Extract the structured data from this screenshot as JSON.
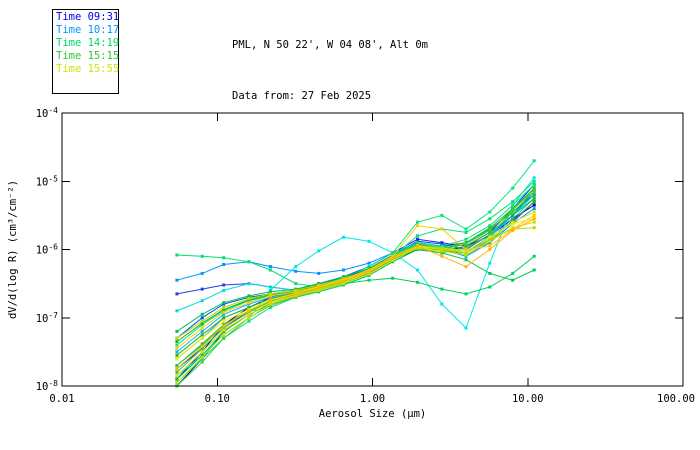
{
  "titles": {
    "line1": "PML, N 50 22', W 04 08', Alt 0m",
    "line2": "Data from: 27 Feb 2025"
  },
  "legend": {
    "items": [
      {
        "label": "Time 09:31",
        "color": "#0000e6"
      },
      {
        "label": "Time 10:17",
        "color": "#0096ff"
      },
      {
        "label": "Time 14:19",
        "color": "#00dc64"
      },
      {
        "label": "Time 15:15",
        "color": "#2dc832"
      },
      {
        "label": "Time 15:55",
        "color": "#d2e600"
      }
    ]
  },
  "chart_data": {
    "type": "line",
    "x_scale": "log",
    "y_scale": "log",
    "xlabel": "Aerosol Size (μm)",
    "ylabel": "dV/d(log R) (cm³/cm⁻²)",
    "xlim": [
      0.01,
      100
    ],
    "ylim": [
      1e-08,
      0.0001
    ],
    "grid": false,
    "legend_position": "top-left-outside",
    "x_ticks": [
      {
        "value": 0.01,
        "label": "0.01"
      },
      {
        "value": 0.1,
        "label": "0.10"
      },
      {
        "value": 1.0,
        "label": "1.00"
      },
      {
        "value": 10.0,
        "label": "10.00"
      },
      {
        "value": 100.0,
        "label": "100.00"
      }
    ],
    "y_ticks": [
      {
        "base": "10",
        "sup": "-4",
        "exp": -4
      },
      {
        "base": "10",
        "sup": "-5",
        "exp": -5
      },
      {
        "base": "10",
        "sup": "-6",
        "exp": -6
      },
      {
        "base": "10",
        "sup": "-7",
        "exp": -7
      },
      {
        "base": "10",
        "sup": "-8",
        "exp": -8
      }
    ],
    "x": [
      0.055,
      0.08,
      0.11,
      0.16,
      0.22,
      0.32,
      0.45,
      0.65,
      0.95,
      1.35,
      1.95,
      2.8,
      4.0,
      5.7,
      8.0,
      11.0
    ],
    "series": [
      {
        "time": "09:31",
        "color": "#0000c8",
        "logy": [
          -7.9,
          -7.5,
          -7.1,
          -6.85,
          -6.7,
          -6.6,
          -6.55,
          -6.45,
          -6.3,
          -6.1,
          -5.9,
          -5.95,
          -5.9,
          -5.7,
          -5.45,
          -5.2
        ]
      },
      {
        "time": "09:31",
        "color": "#1820ff",
        "logy": [
          -7.75,
          -7.45,
          -7.15,
          -6.9,
          -6.75,
          -6.65,
          -6.5,
          -6.4,
          -6.25,
          -6.05,
          -5.85,
          -5.9,
          -5.95,
          -5.75,
          -5.4,
          -5.05
        ]
      },
      {
        "time": "09:31",
        "color": "#0000a0",
        "logy": [
          -8.0,
          -7.6,
          -7.2,
          -6.95,
          -6.8,
          -6.68,
          -6.6,
          -6.5,
          -6.35,
          -6.15,
          -6.0,
          -6.05,
          -5.95,
          -5.8,
          -5.55,
          -5.35
        ]
      },
      {
        "time": "09:31",
        "color": "#2a3ee6",
        "logy": [
          -6.65,
          -6.58,
          -6.52,
          -6.5,
          -6.55,
          -6.6,
          -6.55,
          -6.45,
          -6.3,
          -6.12,
          -5.92,
          -6.0,
          -6.05,
          -5.85,
          -5.6,
          -5.3
        ]
      },
      {
        "time": "09:31",
        "color": "#0050e6",
        "logy": [
          -7.3,
          -7.0,
          -6.8,
          -6.7,
          -6.65,
          -6.6,
          -6.5,
          -6.42,
          -6.28,
          -6.08,
          -5.88,
          -5.92,
          -6.0,
          -5.78,
          -5.5,
          -5.15
        ]
      },
      {
        "time": "10:17",
        "color": "#0096ff",
        "logy": [
          -6.45,
          -6.35,
          -6.22,
          -6.18,
          -6.25,
          -6.32,
          -6.35,
          -6.3,
          -6.2,
          -6.05,
          -5.9,
          -5.95,
          -6.1,
          -5.9,
          -5.62,
          -5.4
        ]
      },
      {
        "time": "10:17",
        "color": "#00b4ff",
        "logy": [
          -7.5,
          -7.2,
          -6.95,
          -6.8,
          -6.7,
          -6.62,
          -6.55,
          -6.45,
          -6.3,
          -6.1,
          -5.95,
          -6.0,
          -6.1,
          -5.85,
          -5.55,
          -5.25
        ]
      },
      {
        "time": "10:17",
        "color": "#00e6e6",
        "logy": [
          -7.85,
          -7.55,
          -7.25,
          -7.0,
          -6.6,
          -6.25,
          -6.02,
          -5.82,
          -5.88,
          -6.05,
          -6.3,
          -6.8,
          -7.15,
          -6.2,
          -5.35,
          -4.95
        ]
      },
      {
        "time": "10:17",
        "color": "#00dcdc",
        "logy": [
          -6.9,
          -6.75,
          -6.6,
          -6.5,
          -6.55,
          -6.6,
          -6.58,
          -6.48,
          -6.32,
          -6.1,
          -5.9,
          -5.95,
          -6.05,
          -5.8,
          -5.5,
          -5.2
        ]
      },
      {
        "time": "10:17",
        "color": "#28a0f0",
        "logy": [
          -7.6,
          -7.3,
          -7.0,
          -6.85,
          -6.72,
          -6.64,
          -6.55,
          -6.45,
          -6.32,
          -6.12,
          -5.95,
          -6.0,
          -6.05,
          -5.82,
          -5.5,
          -5.1
        ]
      },
      {
        "time": "14:19",
        "color": "#00e070",
        "logy": [
          -6.08,
          -6.1,
          -6.12,
          -6.18,
          -6.3,
          -6.5,
          -6.55,
          -6.45,
          -6.3,
          -6.1,
          -5.8,
          -5.7,
          -5.75,
          -5.55,
          -5.3,
          -5.0
        ]
      },
      {
        "time": "14:19",
        "color": "#00d264",
        "logy": [
          -7.7,
          -7.4,
          -7.1,
          -6.9,
          -6.75,
          -6.66,
          -6.58,
          -6.5,
          -6.45,
          -6.42,
          -6.48,
          -6.58,
          -6.65,
          -6.55,
          -6.35,
          -6.1
        ]
      },
      {
        "time": "14:19",
        "color": "#00c850",
        "logy": [
          -7.9,
          -7.55,
          -7.2,
          -6.95,
          -6.8,
          -6.7,
          -6.62,
          -6.52,
          -6.38,
          -6.18,
          -6.0,
          -6.05,
          -6.15,
          -6.35,
          -6.45,
          -6.3
        ]
      },
      {
        "time": "14:19",
        "color": "#00e678",
        "logy": [
          -7.4,
          -7.1,
          -6.9,
          -6.75,
          -6.68,
          -6.6,
          -6.52,
          -6.42,
          -6.25,
          -6.05,
          -5.6,
          -5.5,
          -5.7,
          -5.45,
          -5.1,
          -4.7
        ]
      },
      {
        "time": "14:19",
        "color": "#10dc82",
        "logy": [
          -7.95,
          -7.6,
          -7.3,
          -7.05,
          -6.85,
          -6.7,
          -6.6,
          -6.48,
          -6.3,
          -6.08,
          -5.9,
          -5.95,
          -5.85,
          -5.65,
          -5.35,
          -5.05
        ]
      },
      {
        "time": "14:19",
        "color": "#00be5a",
        "logy": [
          -7.2,
          -6.95,
          -6.78,
          -6.68,
          -6.62,
          -6.58,
          -6.5,
          -6.4,
          -6.28,
          -6.1,
          -5.95,
          -6.0,
          -5.9,
          -5.7,
          -5.45,
          -5.2
        ]
      },
      {
        "time": "15:15",
        "color": "#2dc832",
        "logy": [
          -7.8,
          -7.45,
          -7.15,
          -6.92,
          -6.76,
          -6.65,
          -6.56,
          -6.46,
          -6.3,
          -6.1,
          -5.92,
          -5.97,
          -5.9,
          -5.68,
          -5.4,
          -5.1
        ]
      },
      {
        "time": "15:15",
        "color": "#28b428",
        "logy": [
          -7.55,
          -7.25,
          -7.0,
          -6.85,
          -6.72,
          -6.63,
          -6.54,
          -6.44,
          -6.3,
          -6.12,
          -5.95,
          -6.02,
          -5.95,
          -5.75,
          -5.5,
          -5.25
        ]
      },
      {
        "time": "15:15",
        "color": "#3cd23c",
        "logy": [
          -8.0,
          -7.65,
          -7.3,
          -7.0,
          -6.82,
          -6.7,
          -6.6,
          -6.5,
          -6.35,
          -6.15,
          -5.98,
          -6.05,
          -5.98,
          -5.78,
          -5.45,
          -5.15
        ]
      },
      {
        "time": "15:15",
        "color": "#20aa20",
        "logy": [
          -7.35,
          -7.08,
          -6.88,
          -6.74,
          -6.66,
          -6.6,
          -6.53,
          -6.44,
          -6.3,
          -6.12,
          -5.96,
          -6.0,
          -6.08,
          -5.88,
          -5.58,
          -5.3
        ]
      },
      {
        "time": "15:15",
        "color": "#35c83c",
        "logy": [
          -7.7,
          -7.38,
          -7.1,
          -6.9,
          -6.75,
          -6.65,
          -6.57,
          -6.47,
          -6.33,
          -6.13,
          -5.96,
          -6.0,
          -5.92,
          -5.72,
          -5.42,
          -5.12
        ]
      },
      {
        "time": "15:55",
        "color": "#e1e100",
        "logy": [
          -7.85,
          -7.5,
          -7.18,
          -6.95,
          -6.78,
          -6.67,
          -6.58,
          -6.48,
          -6.33,
          -6.13,
          -5.96,
          -6.0,
          -6.05,
          -5.85,
          -5.6,
          -5.45
        ]
      },
      {
        "time": "15:55",
        "color": "#f0f000",
        "logy": [
          -7.6,
          -7.3,
          -7.05,
          -6.88,
          -6.74,
          -6.64,
          -6.55,
          -6.45,
          -6.32,
          -6.12,
          -5.95,
          -5.98,
          -6.02,
          -5.82,
          -5.62,
          -5.55
        ]
      },
      {
        "time": "15:55",
        "color": "#cddc00",
        "logy": [
          -7.95,
          -7.58,
          -7.25,
          -7.0,
          -6.8,
          -6.68,
          -6.6,
          -6.5,
          -6.36,
          -6.16,
          -5.98,
          -6.02,
          -6.08,
          -5.88,
          -5.68,
          -5.6
        ]
      },
      {
        "time": "15:55",
        "color": "#b4dc00",
        "logy": [
          -7.3,
          -7.05,
          -6.85,
          -6.72,
          -6.65,
          -6.6,
          -6.52,
          -6.43,
          -6.3,
          -6.1,
          -5.94,
          -5.98,
          -6.05,
          -5.85,
          -5.7,
          -5.68
        ]
      },
      {
        "time": "15:55",
        "color": "#ffc800",
        "logy": [
          -7.45,
          -7.15,
          -6.92,
          -6.78,
          -6.68,
          -6.62,
          -6.54,
          -6.44,
          -6.3,
          -6.1,
          -5.65,
          -5.7,
          -6.0,
          -5.95,
          -5.7,
          -5.5
        ]
      },
      {
        "time": "15:55",
        "color": "#ffb400",
        "logy": [
          -7.75,
          -7.42,
          -7.12,
          -6.9,
          -6.75,
          -6.65,
          -6.56,
          -6.46,
          -6.32,
          -6.12,
          -5.95,
          -6.1,
          -6.25,
          -6.0,
          -5.72,
          -5.55
        ]
      }
    ]
  }
}
